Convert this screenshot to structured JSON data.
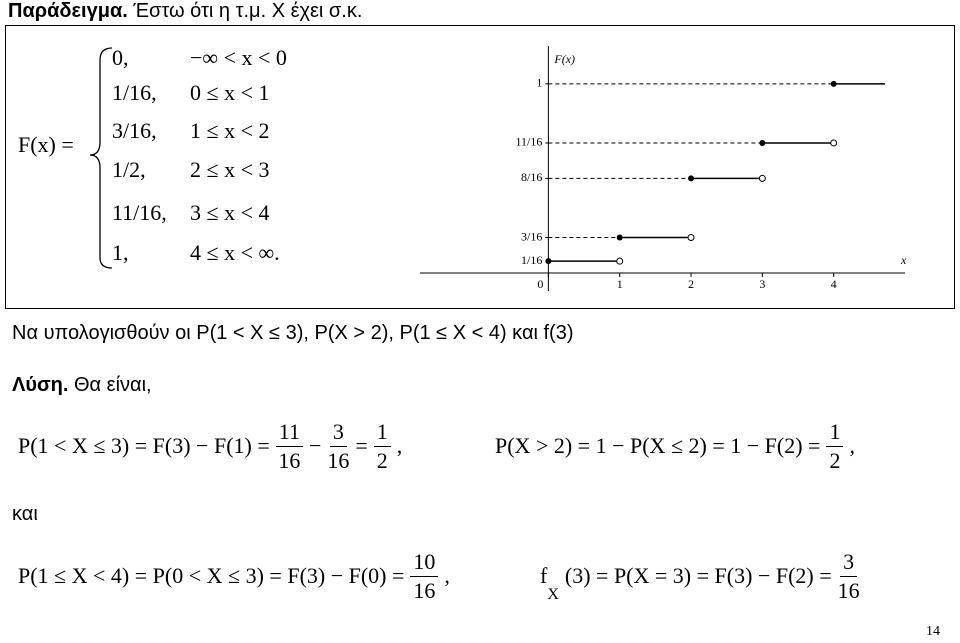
{
  "header": {
    "label": "Παράδειγμα.",
    "text": "Έστω ότι η τ.μ. X έχει σ.κ."
  },
  "definition": {
    "lhs": "F(x) =",
    "cases": [
      {
        "value": "0,",
        "condition": "−∞ < x < 0"
      },
      {
        "value": "1/16,",
        "condition": "0 ≤ x < 1"
      },
      {
        "value": "3/16,",
        "condition": "1 ≤ x < 2"
      },
      {
        "value": "1/2,",
        "condition": "2 ≤ x < 3"
      },
      {
        "value": "11/16,",
        "condition": "3 ≤ x < 4"
      },
      {
        "value": "1,",
        "condition": "4 ≤ x < ∞."
      }
    ]
  },
  "chart_data": {
    "type": "step",
    "x_label": "x",
    "y_label": "F(x)",
    "x": [
      0,
      1,
      2,
      3,
      4
    ],
    "values": [
      0.0625,
      0.1875,
      0.5,
      0.6875,
      1
    ],
    "color": "#000000",
    "xlim": [
      -1.8,
      5
    ],
    "ylim": [
      0,
      1.2
    ],
    "xticks": [
      0,
      1,
      2,
      3,
      4
    ],
    "yticks": [
      {
        "value": 0.0625,
        "label": "1/16"
      },
      {
        "value": 0.1875,
        "label": "3/16"
      },
      {
        "value": 0.5,
        "label": "8/16"
      },
      {
        "value": 0.6875,
        "label": "11/16"
      },
      1
    ]
  },
  "question": "Να υπολογισθούν οι  P(1 < X ≤ 3),  P(X > 2),  P(1 ≤ X < 4)  και  f(3)",
  "solution": {
    "label": "Λύση.",
    "intro": "Θα είναι,",
    "eq1": [
      "P(1 < X ≤ 3) = F(3) − F(1) =",
      {
        "num": "11",
        "den": "16"
      },
      "−",
      {
        "num": "3",
        "den": "16"
      },
      "=",
      {
        "num": "1",
        "den": "2"
      },
      ","
    ],
    "eq2": [
      "P(X > 2) = 1 − P(X ≤ 2) = 1 − F(2) =",
      {
        "num": "1",
        "den": "2"
      },
      ","
    ],
    "connector": "και",
    "eq3": [
      "P(1 ≤ X < 4) = P(0 < X ≤ 3) = F(3) − F(0) =",
      {
        "num": "10",
        "den": "16"
      },
      ","
    ],
    "eq4": [
      "f",
      {
        "sub": "X"
      },
      "(3) = P(X = 3) = F(3) − F(2) =",
      {
        "num": "3",
        "den": "16"
      }
    ]
  },
  "page_number": "14"
}
